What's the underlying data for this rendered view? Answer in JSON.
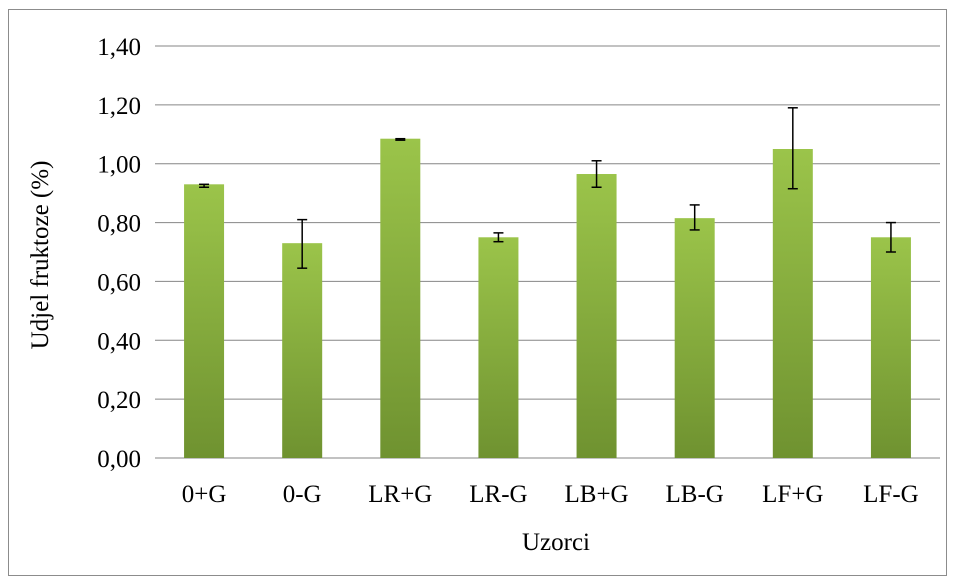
{
  "chart_data": {
    "type": "bar",
    "title": "",
    "xlabel": "Uzorci",
    "ylabel": "Udjel fruktoze (%)",
    "categories": [
      "0+G",
      "0-G",
      "LR+G",
      "LR-G",
      "LB+G",
      "LB-G",
      "LF+G",
      "LF-G"
    ],
    "values": [
      0.93,
      0.73,
      1.085,
      0.75,
      0.965,
      0.815,
      1.05,
      0.75
    ],
    "error_low": [
      0.92,
      0.645,
      1.08,
      0.735,
      0.92,
      0.775,
      0.915,
      0.7
    ],
    "error_high": [
      0.93,
      0.81,
      1.085,
      0.765,
      1.01,
      0.86,
      1.19,
      0.8
    ],
    "ylim": [
      0,
      1.4
    ],
    "yticks": [
      "0,00",
      "0,20",
      "0,40",
      "0,60",
      "0,80",
      "1,00",
      "1,20",
      "1,40"
    ],
    "grid": true,
    "legend": "none",
    "colors": {
      "bar_top": "#9bc44a",
      "bar_bottom": "#6f9230",
      "grid": "#868686",
      "error_bar": "#000000"
    }
  }
}
